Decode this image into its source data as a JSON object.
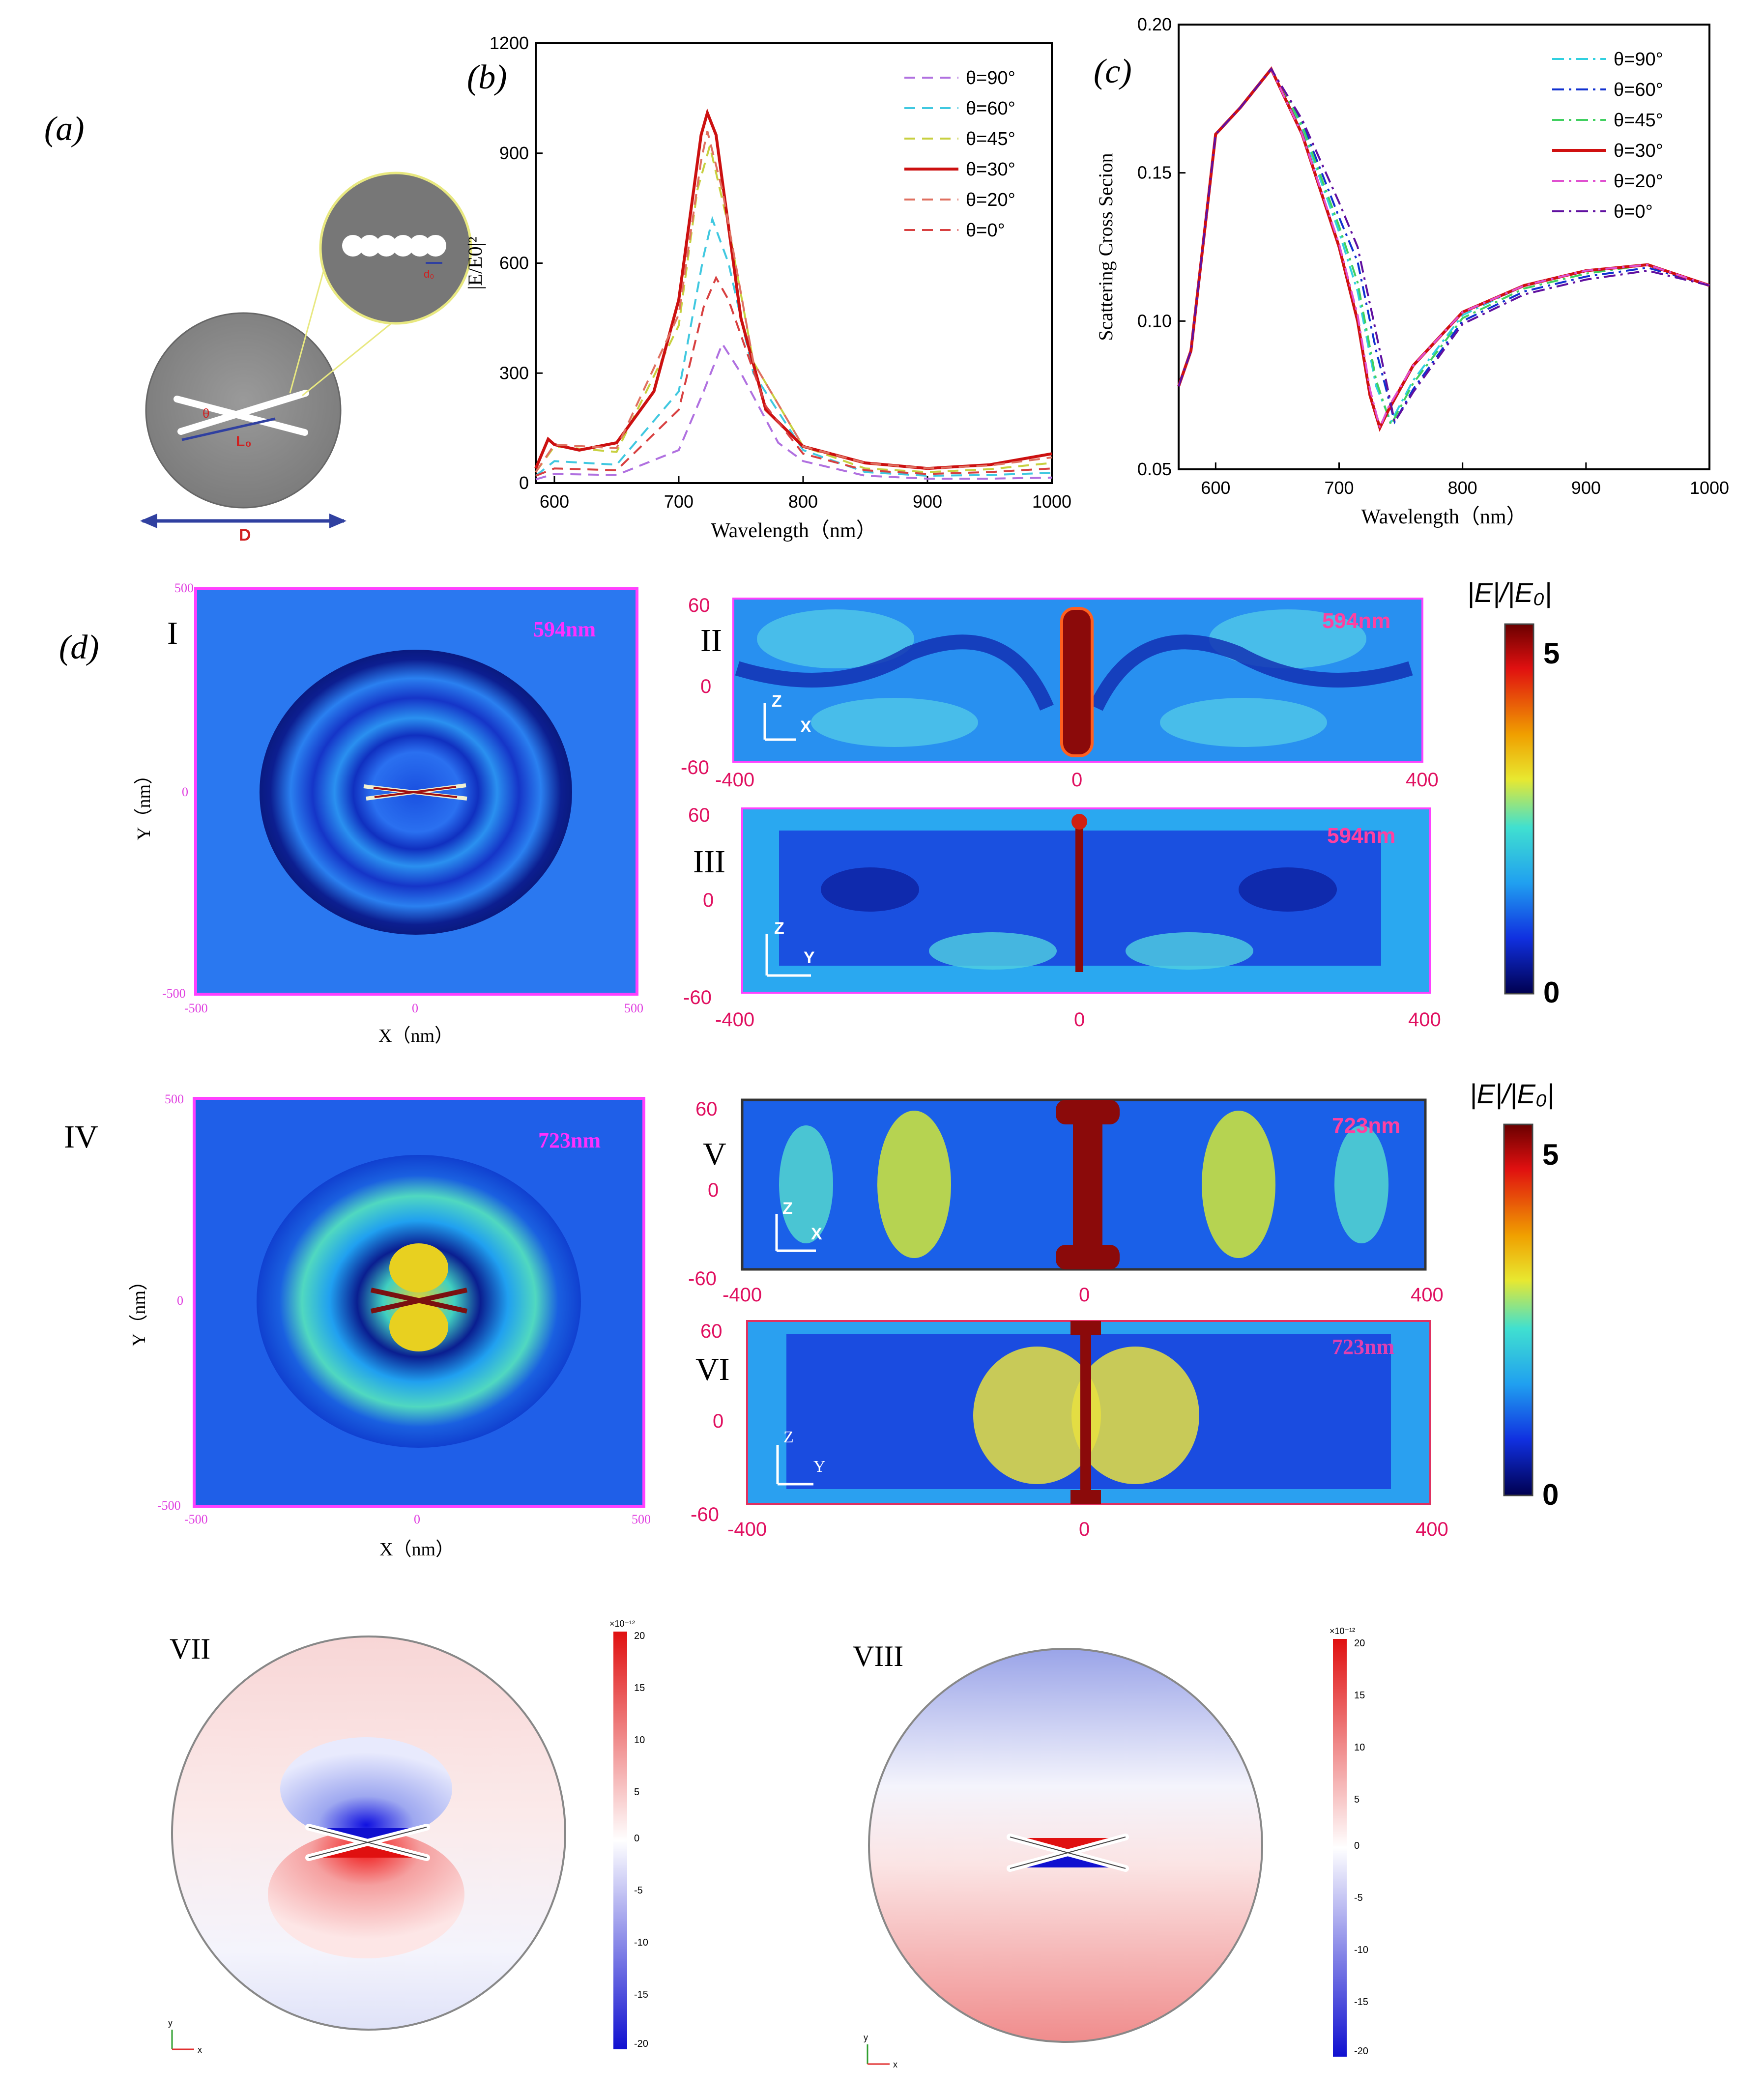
{
  "colors": {
    "magenta": "#dd33dd",
    "pink_red": "#e03060",
    "dark_red": "#8b1010",
    "field_blue": "#1f5fe8",
    "gray_disk": "#8a8a8a"
  },
  "panel_labels": {
    "a": "(a)",
    "b": "(b)",
    "c": "(c)",
    "d": "(d)",
    "I": "I",
    "II": "II",
    "III": "III",
    "IV": "IV",
    "V": "V",
    "VI": "VI",
    "VII": "VII",
    "VIII": "VIII"
  },
  "schematic": {
    "length_label": "D",
    "rod_label": "L₀",
    "diameter_label": "d₀",
    "angle_label": "θ"
  },
  "chart_data": [
    {
      "id": "b",
      "type": "line",
      "xlabel": "Wavelength（nm）",
      "ylabel": "|E/E0|²",
      "xlim": [
        585,
        1000
      ],
      "ylim": [
        0,
        1200
      ],
      "xticks": [
        600,
        700,
        800,
        900,
        1000
      ],
      "yticks": [
        0,
        300,
        600,
        900,
        1200
      ],
      "legend": "top-right",
      "series": [
        {
          "name": "θ=90°",
          "color": "#b070e0",
          "dash": "dashed",
          "x": [
            585,
            600,
            650,
            700,
            720,
            735,
            750,
            780,
            800,
            850,
            900,
            950,
            1000
          ],
          "y": [
            10,
            25,
            22,
            90,
            250,
            380,
            300,
            110,
            60,
            20,
            12,
            12,
            15
          ]
        },
        {
          "name": "θ=60°",
          "color": "#40c8e0",
          "dash": "dashed",
          "x": [
            585,
            600,
            650,
            700,
            720,
            727,
            740,
            760,
            800,
            850,
            900,
            950,
            1000
          ],
          "y": [
            20,
            60,
            50,
            250,
            620,
            720,
            600,
            300,
            90,
            30,
            20,
            22,
            28
          ]
        },
        {
          "name": "θ=45°",
          "color": "#c8d040",
          "dash": "dashed",
          "x": [
            585,
            600,
            650,
            700,
            715,
            725,
            740,
            760,
            800,
            850,
            900,
            950,
            1000
          ],
          "y": [
            30,
            100,
            85,
            430,
            800,
            920,
            700,
            330,
            100,
            40,
            30,
            38,
            55
          ]
        },
        {
          "name": "θ=30°",
          "color": "#cc1010",
          "dash": "solid",
          "x": [
            585,
            595,
            600,
            620,
            650,
            680,
            700,
            710,
            718,
            723,
            730,
            740,
            750,
            770,
            800,
            850,
            900,
            950,
            1000
          ],
          "y": [
            40,
            120,
            105,
            90,
            110,
            250,
            500,
            750,
            950,
            1010,
            950,
            700,
            450,
            200,
            100,
            55,
            40,
            50,
            80
          ]
        },
        {
          "name": "θ=20°",
          "color": "#e07060",
          "dash": "dashed",
          "x": [
            585,
            600,
            650,
            700,
            718,
            723,
            735,
            760,
            800,
            850,
            900,
            950,
            1000
          ],
          "y": [
            30,
            105,
            95,
            460,
            880,
            960,
            800,
            330,
            100,
            55,
            40,
            48,
            70
          ]
        },
        {
          "name": "θ=0°",
          "color": "#d84040",
          "dash": "dashed",
          "x": [
            585,
            600,
            650,
            700,
            720,
            730,
            740,
            770,
            800,
            850,
            900,
            950,
            1000
          ],
          "y": [
            20,
            40,
            35,
            200,
            480,
            560,
            500,
            210,
            80,
            35,
            25,
            30,
            40
          ]
        }
      ]
    },
    {
      "id": "c",
      "type": "line",
      "xlabel": "Wavelength（nm）",
      "ylabel": "Scattering Cross Secion",
      "xlim": [
        570,
        1000
      ],
      "ylim": [
        0.05,
        0.2
      ],
      "xticks": [
        600,
        700,
        800,
        900,
        1000
      ],
      "yticks": [
        0.05,
        0.1,
        0.15,
        0.2
      ],
      "ytick_labels": [
        "0.05",
        "0.10",
        "0.15",
        "0.20"
      ],
      "legend": "top-right",
      "series": [
        {
          "name": "θ=90°",
          "color": "#30d0e0",
          "dash": "dashdot",
          "x": [
            570,
            580,
            600,
            620,
            645,
            670,
            700,
            715,
            730,
            742,
            760,
            800,
            850,
            900,
            950,
            1000
          ],
          "y": [
            0.078,
            0.09,
            0.163,
            0.172,
            0.185,
            0.165,
            0.13,
            0.11,
            0.078,
            0.066,
            0.08,
            0.102,
            0.112,
            0.117,
            0.119,
            0.112
          ]
        },
        {
          "name": "θ=60°",
          "color": "#1030d0",
          "dash": "dashdot",
          "x": [
            570,
            580,
            600,
            620,
            645,
            670,
            700,
            715,
            730,
            745,
            760,
            800,
            850,
            900,
            950,
            1000
          ],
          "y": [
            0.078,
            0.09,
            0.163,
            0.172,
            0.185,
            0.167,
            0.135,
            0.12,
            0.09,
            0.066,
            0.077,
            0.1,
            0.11,
            0.115,
            0.118,
            0.112
          ]
        },
        {
          "name": "θ=45°",
          "color": "#40d060",
          "dash": "dashdot",
          "x": [
            570,
            580,
            600,
            620,
            645,
            670,
            700,
            715,
            730,
            742,
            760,
            800,
            850,
            900,
            950,
            1000
          ],
          "y": [
            0.078,
            0.09,
            0.163,
            0.172,
            0.185,
            0.166,
            0.132,
            0.113,
            0.08,
            0.065,
            0.079,
            0.101,
            0.111,
            0.116,
            0.119,
            0.112
          ]
        },
        {
          "name": "θ=30°",
          "color": "#d01010",
          "dash": "solid",
          "x": [
            570,
            580,
            600,
            620,
            645,
            670,
            700,
            715,
            725,
            733,
            740,
            760,
            800,
            850,
            900,
            950,
            1000
          ],
          "y": [
            0.078,
            0.09,
            0.163,
            0.172,
            0.185,
            0.163,
            0.125,
            0.1,
            0.075,
            0.064,
            0.07,
            0.085,
            0.103,
            0.112,
            0.117,
            0.119,
            0.112
          ]
        },
        {
          "name": "θ=20°",
          "color": "#e050d0",
          "dash": "dashdot",
          "x": [
            570,
            580,
            600,
            620,
            645,
            670,
            700,
            715,
            725,
            733,
            740,
            760,
            800,
            850,
            900,
            950,
            1000
          ],
          "y": [
            0.078,
            0.09,
            0.163,
            0.172,
            0.185,
            0.163,
            0.126,
            0.102,
            0.077,
            0.064,
            0.071,
            0.085,
            0.103,
            0.112,
            0.117,
            0.119,
            0.112
          ]
        },
        {
          "name": "θ=0°",
          "color": "#6010a0",
          "dash": "dashdot",
          "x": [
            570,
            580,
            600,
            620,
            645,
            670,
            700,
            715,
            728,
            745,
            760,
            800,
            850,
            900,
            950,
            1000
          ],
          "y": [
            0.078,
            0.09,
            0.163,
            0.172,
            0.185,
            0.168,
            0.14,
            0.125,
            0.1,
            0.066,
            0.076,
            0.099,
            0.109,
            0.114,
            0.117,
            0.112
          ]
        }
      ]
    }
  ],
  "field_maps": {
    "xy_xlabel": "X（nm）",
    "xy_ylabel": "Y（nm）",
    "xy_ticks": [
      "-500",
      "0",
      "500"
    ],
    "xy_yticks": [
      "500",
      "0",
      "-500"
    ],
    "side_xticks": [
      "-400",
      "0",
      "400"
    ],
    "side_yticks": [
      "60",
      "0",
      "-60"
    ],
    "wavelength_1": "594nm",
    "wavelength_2": "723nm",
    "axis_z": "Z",
    "axis_x": "X",
    "axis_y": "Y",
    "colorbar_title": "|E|/|E₀|",
    "colorbar_max": "5",
    "colorbar_min": "0"
  },
  "charge_maps": {
    "scale_exp": "×10⁻¹²",
    "scale_ticks": [
      "20",
      "15",
      "10",
      "5",
      "0",
      "-5",
      "-10",
      "-15",
      "-20"
    ],
    "axis_y": "y",
    "axis_x": "x"
  }
}
